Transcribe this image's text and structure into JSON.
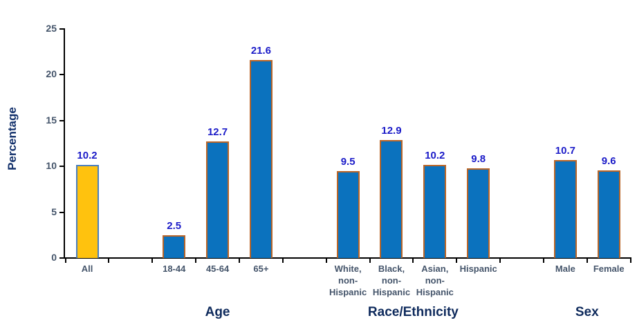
{
  "chart_data": {
    "type": "bar",
    "ylabel": "Percentage",
    "ylim": [
      0,
      25
    ],
    "yticks": [
      0,
      5,
      10,
      15,
      20,
      25
    ],
    "slot_count": 13,
    "grid": false,
    "legend": null,
    "bars": [
      {
        "slot": 1,
        "category": "All",
        "label_lines": [
          "All"
        ],
        "value": 10.2,
        "highlight": true
      },
      {
        "slot": 3,
        "category": "18-44",
        "label_lines": [
          "18-44"
        ],
        "value": 2.5,
        "highlight": false
      },
      {
        "slot": 4,
        "category": "45-64",
        "label_lines": [
          "45-64"
        ],
        "value": 12.7,
        "highlight": false
      },
      {
        "slot": 5,
        "category": "65+",
        "label_lines": [
          "65+"
        ],
        "value": 21.6,
        "highlight": false
      },
      {
        "slot": 7,
        "category": "White, non-Hispanic",
        "label_lines": [
          "White,",
          "non-",
          "Hispanic"
        ],
        "value": 9.5,
        "highlight": false
      },
      {
        "slot": 8,
        "category": "Black, non-Hispanic",
        "label_lines": [
          "Black,",
          "non-",
          "Hispanic"
        ],
        "value": 12.9,
        "highlight": false
      },
      {
        "slot": 9,
        "category": "Asian, non-Hispanic",
        "label_lines": [
          "Asian,",
          "non-",
          "Hispanic"
        ],
        "value": 10.2,
        "highlight": false
      },
      {
        "slot": 10,
        "category": "Hispanic",
        "label_lines": [
          "Hispanic"
        ],
        "value": 9.8,
        "highlight": false
      },
      {
        "slot": 12,
        "category": "Male",
        "label_lines": [
          "Male"
        ],
        "value": 10.7,
        "highlight": false
      },
      {
        "slot": 13,
        "category": "Female",
        "label_lines": [
          "Female"
        ],
        "value": 9.6,
        "highlight": false
      }
    ],
    "groups": [
      {
        "label": "Age",
        "start_slot": 3,
        "end_slot": 5
      },
      {
        "label": "Race/Ethnicity",
        "start_slot": 7,
        "end_slot": 10
      },
      {
        "label": "Sex",
        "start_slot": 12,
        "end_slot": 13
      }
    ],
    "colors": {
      "bar_fill": "#0B72BE",
      "bar_border": "#BA6527",
      "highlight_fill": "#FFC20E",
      "highlight_border": "#4A7EBD",
      "value_label": "#1B1BC8",
      "tick_label": "#44546A",
      "group_label": "#0E2A5C",
      "axis_title": "#12306B",
      "axis_line": "#000000"
    }
  }
}
